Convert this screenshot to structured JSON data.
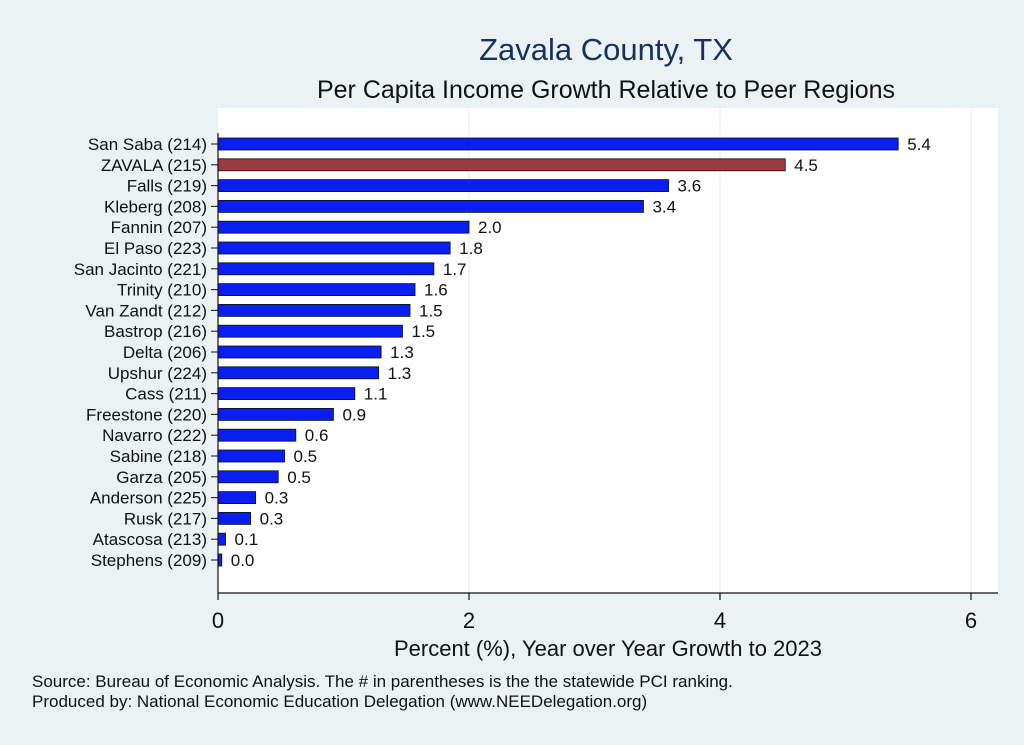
{
  "chart_data": {
    "type": "bar",
    "orientation": "horizontal",
    "title": "Zavala County, TX",
    "subtitle": "Per Capita Income Growth Relative to Peer Regions",
    "xlabel": "Percent (%), Year over Year Growth to 2023",
    "xlim": [
      0,
      6.2
    ],
    "xticks": [
      "0",
      "2",
      "4",
      "6"
    ],
    "xtick_values": [
      0,
      2,
      4,
      6
    ],
    "grid": true,
    "categories": [
      "San Saba (214)",
      "ZAVALA (215)",
      "Falls (219)",
      "Kleberg (208)",
      "Fannin (207)",
      "El Paso (223)",
      "San Jacinto (221)",
      "Trinity (210)",
      "Van Zandt (212)",
      "Bastrop (216)",
      "Delta (206)",
      "Upshur (224)",
      "Cass (211)",
      "Freestone (220)",
      "Navarro (222)",
      "Sabine (218)",
      "Garza (205)",
      "Anderson (225)",
      "Rusk (217)",
      "Atascosa (213)",
      "Stephens (209)"
    ],
    "values": [
      5.42,
      4.52,
      3.59,
      3.39,
      2.0,
      1.85,
      1.72,
      1.57,
      1.53,
      1.47,
      1.3,
      1.28,
      1.09,
      0.92,
      0.62,
      0.53,
      0.48,
      0.3,
      0.26,
      0.06,
      0.03
    ],
    "value_labels": [
      "5.4",
      "4.5",
      "3.6",
      "3.4",
      "2.0",
      "1.8",
      "1.7",
      "1.6",
      "1.5",
      "1.5",
      "1.3",
      "1.3",
      "1.1",
      "0.9",
      "0.6",
      "0.5",
      "0.5",
      "0.3",
      "0.3",
      "0.1",
      "0.0"
    ],
    "highlight_index": 1,
    "colors": {
      "bar": "#0b1ef2",
      "highlight": "#9b3a3f",
      "background": "#eaf2f3",
      "plot_bg": "#ffffff",
      "grid": "#e6eef0",
      "title": "#1a2f5e"
    }
  },
  "notes": {
    "source": "Source: Bureau of Economic Analysis. The # in parentheses is the the statewide PCI ranking.",
    "produced": "Produced by: National Economic Education Delegation (www.NEEDelegation.org)"
  }
}
